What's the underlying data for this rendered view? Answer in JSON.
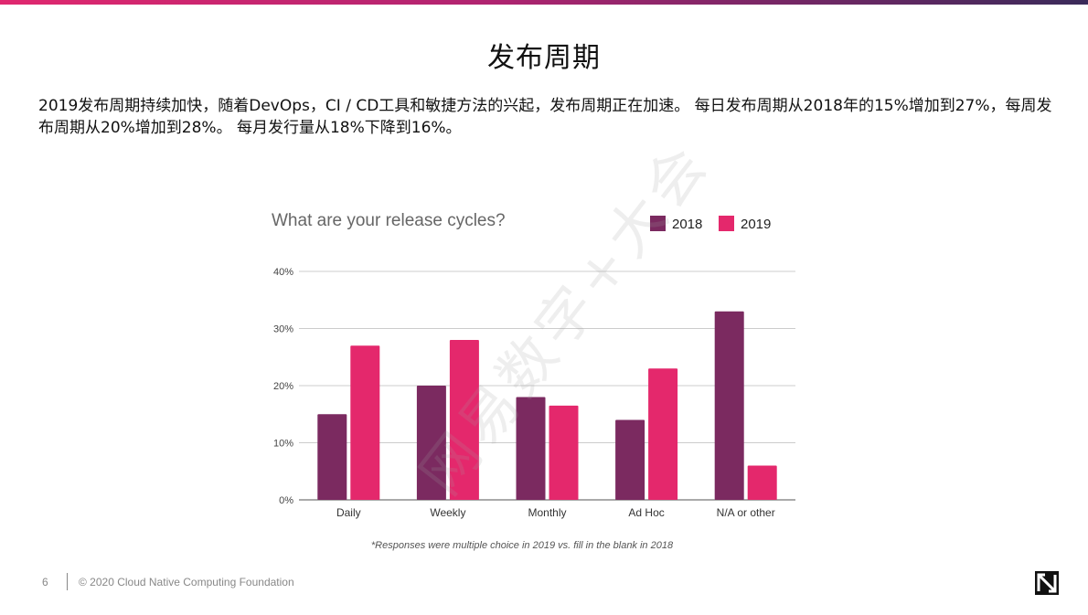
{
  "slide": {
    "title": "发布周期",
    "body": "2019发布周期持续加快，随着DevOps，CI / CD工具和敏捷方法的兴起，发布周期正在加速。 每日发布周期从2018年的15%增加到27%，每周发布周期从20%增加到28%。 每月发行量从18%下降到16%。",
    "watermark": "网易数字+大会",
    "footer_page": "6",
    "footer_copyright": "© 2020 Cloud Native Computing Foundation",
    "footnote": "*Responses were multiple choice in 2019 vs. fill in the blank in 2018"
  },
  "colors": {
    "s2018": "#7b2a60",
    "s2019": "#e4286c",
    "grid": "#cccccc",
    "axis": "#555555"
  },
  "chart_data": {
    "type": "bar",
    "title": "What are your release cycles?",
    "categories": [
      "Daily",
      "Weekly",
      "Monthly",
      "Ad Hoc",
      "N/A or other"
    ],
    "series": [
      {
        "name": "2018",
        "values": [
          15,
          20,
          18,
          14,
          33
        ]
      },
      {
        "name": "2019",
        "values": [
          27,
          28,
          16.5,
          23,
          6
        ]
      }
    ],
    "ylim": [
      0,
      40
    ],
    "yticks": [
      0,
      10,
      20,
      30,
      40
    ],
    "ytick_labels": [
      "0%",
      "10%",
      "20%",
      "30%",
      "40%"
    ],
    "grid": true,
    "legend": "top-right"
  }
}
